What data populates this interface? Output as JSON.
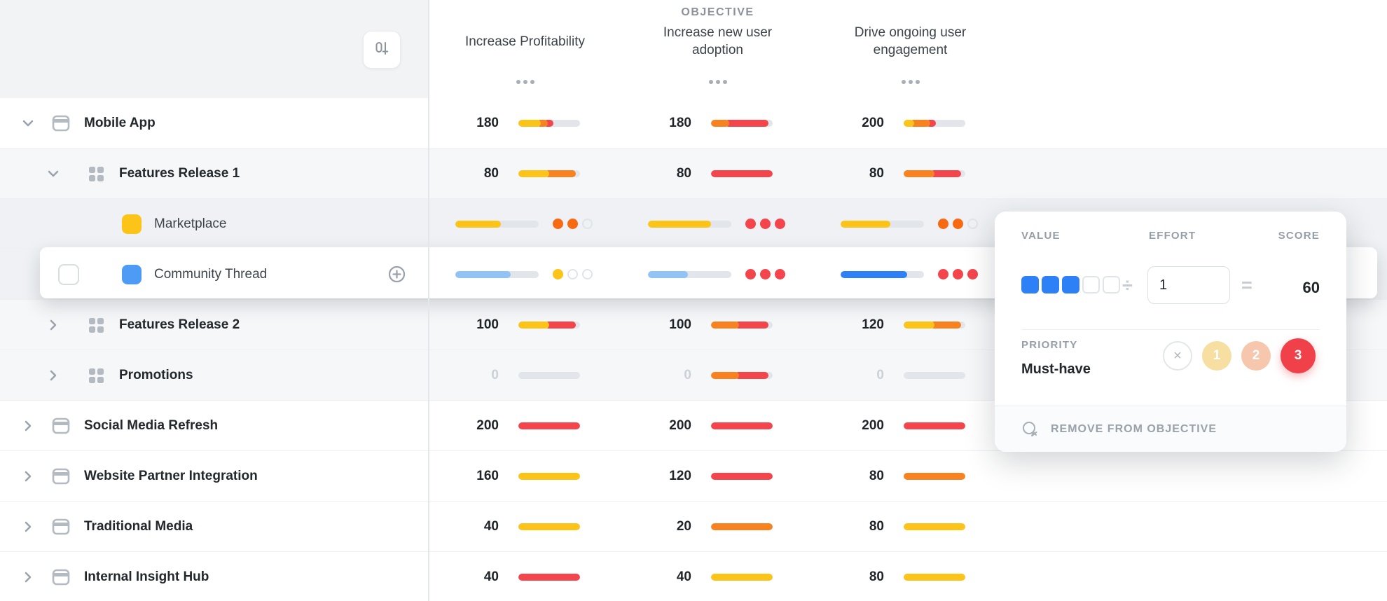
{
  "header": {
    "objective_label": "OBJECTIVE",
    "columns": [
      "Increase Profitability",
      "Increase new user adoption",
      "Drive ongoing user engagement"
    ]
  },
  "palette": {
    "yellow": "#FCC419",
    "orange": "#F8821F",
    "red": "#F5454C",
    "lightblue": "#92C3F6",
    "blue": "#2E80F7",
    "track": "#E2E5E9",
    "dots": {
      "orange": "#F76A12",
      "red": "#F5454C",
      "yellow": "#FCC419"
    }
  },
  "rows": [
    {
      "name": "Mobile App",
      "depth": 0,
      "bg": "white",
      "icon": "window",
      "chevron": "down",
      "cells": [
        {
          "t": "score",
          "v": "180",
          "segs": [
            [
              "yellow",
              36
            ],
            [
              "orange",
              18
            ],
            [
              "red",
              17
            ]
          ]
        },
        {
          "t": "score",
          "v": "180",
          "segs": [
            [
              "orange",
              30
            ],
            [
              "red",
              70
            ]
          ]
        },
        {
          "t": "score",
          "v": "200",
          "segs": [
            [
              "yellow",
              17
            ],
            [
              "orange",
              33
            ],
            [
              "red",
              16
            ]
          ]
        }
      ]
    },
    {
      "name": "Features Release 1",
      "depth": 1,
      "bg": "g1",
      "icon": "grid",
      "chevron": "down",
      "cells": [
        {
          "t": "score",
          "v": "80",
          "segs": [
            [
              "yellow",
              50
            ],
            [
              "orange",
              50
            ]
          ]
        },
        {
          "t": "score",
          "v": "80",
          "segs": [
            [
              "red",
              100
            ]
          ]
        },
        {
          "t": "score",
          "v": "80",
          "segs": [
            [
              "orange",
              50
            ],
            [
              "red",
              50
            ]
          ]
        }
      ]
    },
    {
      "name": "Marketplace",
      "depth": 2,
      "bg": "g2",
      "swatch": "#FCC419",
      "cells": [
        {
          "t": "rating",
          "bar": "yellow",
          "pct": 55,
          "dots": [
            "orange",
            "orange",
            "empty"
          ]
        },
        {
          "t": "rating",
          "bar": "yellow",
          "pct": 76,
          "dots": [
            "red",
            "red",
            "red"
          ]
        },
        {
          "t": "rating",
          "bar": "yellow",
          "pct": 60,
          "dots": [
            "orange",
            "orange",
            "empty"
          ]
        }
      ]
    },
    {
      "name": "Community Thread",
      "depth": 2,
      "bg": "g2",
      "card": true,
      "checkbox": true,
      "plus": true,
      "swatch": "#4D9BF5",
      "cells": [
        {
          "t": "rating",
          "bar": "lightblue",
          "pct": 66,
          "dots": [
            "yellow",
            "empty",
            "empty"
          ]
        },
        {
          "t": "rating",
          "bar": "lightblue",
          "pct": 48,
          "dots": [
            "red",
            "red",
            "red"
          ]
        },
        {
          "t": "rating",
          "bar": "blue",
          "pct": 80,
          "dots": [
            "red",
            "red",
            "red"
          ]
        }
      ]
    },
    {
      "name": "Features Release 2",
      "depth": 1,
      "bg": "g1",
      "icon": "grid",
      "chevron": "right",
      "cells": [
        {
          "t": "score",
          "v": "100",
          "segs": [
            [
              "yellow",
              50
            ],
            [
              "red",
              50
            ]
          ]
        },
        {
          "t": "score",
          "v": "100",
          "segs": [
            [
              "orange",
              45
            ],
            [
              "red",
              55
            ]
          ]
        },
        {
          "t": "score",
          "v": "120",
          "segs": [
            [
              "yellow",
              50
            ],
            [
              "orange",
              50
            ]
          ]
        }
      ]
    },
    {
      "name": "Promotions",
      "depth": 1,
      "bg": "g1",
      "icon": "grid",
      "chevron": "right",
      "cells": [
        {
          "t": "score",
          "v": "0",
          "muted": true,
          "segs": []
        },
        {
          "t": "score",
          "v": "0",
          "muted": true,
          "segs": [
            [
              "orange",
              45
            ],
            [
              "red",
              55
            ]
          ]
        },
        {
          "t": "score",
          "v": "0",
          "muted": true,
          "segs": []
        }
      ]
    },
    {
      "name": "Social Media Refresh",
      "depth": 0,
      "bg": "white",
      "icon": "window",
      "chevron": "right",
      "cells": [
        {
          "t": "score",
          "v": "200",
          "segs": [
            [
              "red",
              100
            ]
          ]
        },
        {
          "t": "score",
          "v": "200",
          "segs": [
            [
              "red",
              100
            ]
          ]
        },
        {
          "t": "score",
          "v": "200",
          "segs": [
            [
              "red",
              100
            ]
          ]
        }
      ]
    },
    {
      "name": "Website Partner Integration",
      "depth": 0,
      "bg": "white",
      "icon": "window",
      "chevron": "right",
      "cells": [
        {
          "t": "score",
          "v": "160",
          "segs": [
            [
              "yellow",
              100
            ]
          ]
        },
        {
          "t": "score",
          "v": "120",
          "segs": [
            [
              "red",
              100
            ]
          ]
        },
        {
          "t": "score",
          "v": "80",
          "segs": [
            [
              "orange",
              100
            ]
          ]
        }
      ]
    },
    {
      "name": "Traditional Media",
      "depth": 0,
      "bg": "white",
      "icon": "window",
      "chevron": "right",
      "cells": [
        {
          "t": "score",
          "v": "40",
          "segs": [
            [
              "yellow",
              100
            ]
          ]
        },
        {
          "t": "score",
          "v": "20",
          "segs": [
            [
              "orange",
              100
            ]
          ]
        },
        {
          "t": "score",
          "v": "80",
          "segs": [
            [
              "yellow",
              100
            ]
          ]
        }
      ]
    },
    {
      "name": "Internal Insight Hub",
      "depth": 0,
      "bg": "white",
      "icon": "window",
      "chevron": "right",
      "cells": [
        {
          "t": "score",
          "v": "40",
          "segs": [
            [
              "red",
              100
            ]
          ]
        },
        {
          "t": "score",
          "v": "40",
          "segs": [
            [
              "yellow",
              100
            ]
          ]
        },
        {
          "t": "score",
          "v": "80",
          "segs": [
            [
              "yellow",
              100
            ]
          ]
        }
      ]
    }
  ],
  "popover": {
    "value_label": "VALUE",
    "effort_label": "EFFORT",
    "score_label": "SCORE",
    "value_filled": 3,
    "value_total": 5,
    "divide_symbol": "÷",
    "equals_symbol": "=",
    "effort_value": "1",
    "score_value": "60",
    "priority_label": "PRIORITY",
    "priority_value": "Must-have",
    "priority_options": [
      "×",
      "1",
      "2",
      "3"
    ],
    "priority_selected_index": 3,
    "remove_label": "REMOVE FROM OBJECTIVE"
  }
}
